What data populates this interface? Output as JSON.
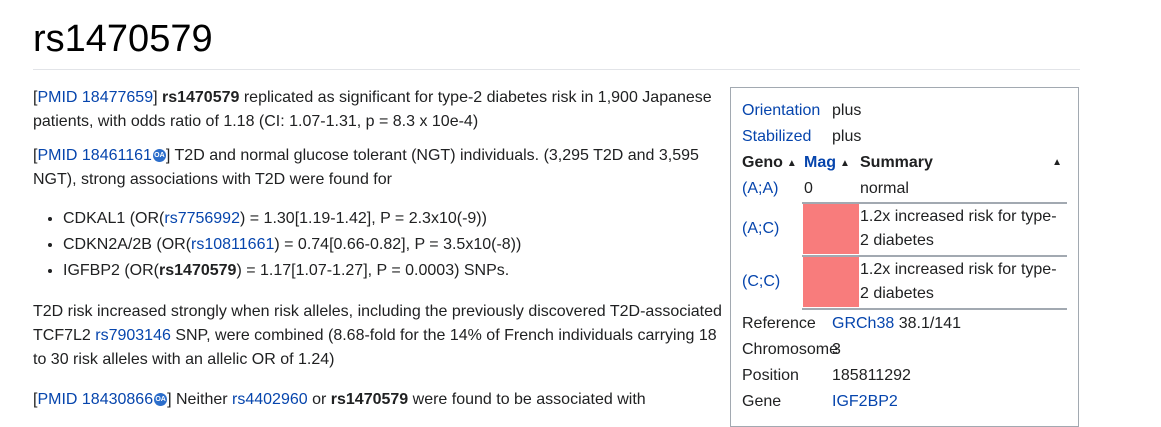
{
  "page": {
    "title": "rs1470579"
  },
  "paragraphs": [
    {
      "pmid_label": "PMID 18477659",
      "rest1": " replicated as significant for type-2 diabetes risk in 1,900 Japanese patients, with odds ratio of 1.18 (CI: 1.07-1.31, p = 8.3 x 10e-4)",
      "bold_snp": "rs1470579"
    },
    {
      "pmid_label": "PMID 18461161",
      "oa_icon": "open-access-icon",
      "text": " T2D and normal glucose tolerant (NGT) individuals. (3,295 T2D and 3,595 NGT), strong associations with T2D were found for"
    }
  ],
  "bullets": [
    {
      "pre": "CDKAL1 (OR(",
      "link": "rs7756992",
      "post": ") = 1.30[1.19-1.42], P = 2.3x10(-9))"
    },
    {
      "pre": "CDKN2A/2B (OR(",
      "link": "rs10811661",
      "post": ") = 0.74[0.66-0.82], P = 3.5x10(-8))"
    },
    {
      "pre": "IGFBP2 (OR(",
      "bold": "rs1470579",
      "post": ") = 1.17[1.07-1.27], P = 0.0003) SNPs."
    }
  ],
  "para3": {
    "pre": "T2D risk increased strongly when risk alleles, including the previously discovered T2D-associated TCF7L2 ",
    "link": "rs7903146",
    "post": " SNP, were combined (8.68-fold for the 14% of French individuals carrying 18 to 30 risk alleles with an allelic OR of 1.24)"
  },
  "para4": {
    "pmid_label": "PMID 18430866",
    "oa_icon": "open-access-icon",
    "t1": " Neither ",
    "link": "rs4402960",
    "t2": " or ",
    "bold": "rs1470579",
    "t3": " were found to be associated with"
  },
  "infobox": {
    "orientation_label": "Orientation",
    "orientation_value": "plus",
    "stabilized_label": "Stabilized",
    "stabilized_value": "plus",
    "headers": {
      "geno": "Geno",
      "mag": "Mag",
      "summary": "Summary"
    },
    "rows": [
      {
        "geno": "(A;A)",
        "mag": "0",
        "summary": "normal",
        "mag_color": ""
      },
      {
        "geno": "(A;C)",
        "mag": "",
        "summary_l1": "1.2x increased risk for type-",
        "summary_l2": "2 diabetes",
        "mag_color": "#f87c7c"
      },
      {
        "geno": "(C;C)",
        "mag": "",
        "summary_l1": "1.2x increased risk for type-",
        "summary_l2": "2 diabetes",
        "mag_color": "#f87c7c"
      }
    ],
    "reference_label": "Reference",
    "reference_link": "GRCh38",
    "reference_value": "38.1/141",
    "chromosome_label": "Chromosome",
    "chromosome_value": "3",
    "position_label": "Position",
    "position_value": "185811292",
    "gene_label": "Gene",
    "gene_link": "IGF2BP2"
  }
}
